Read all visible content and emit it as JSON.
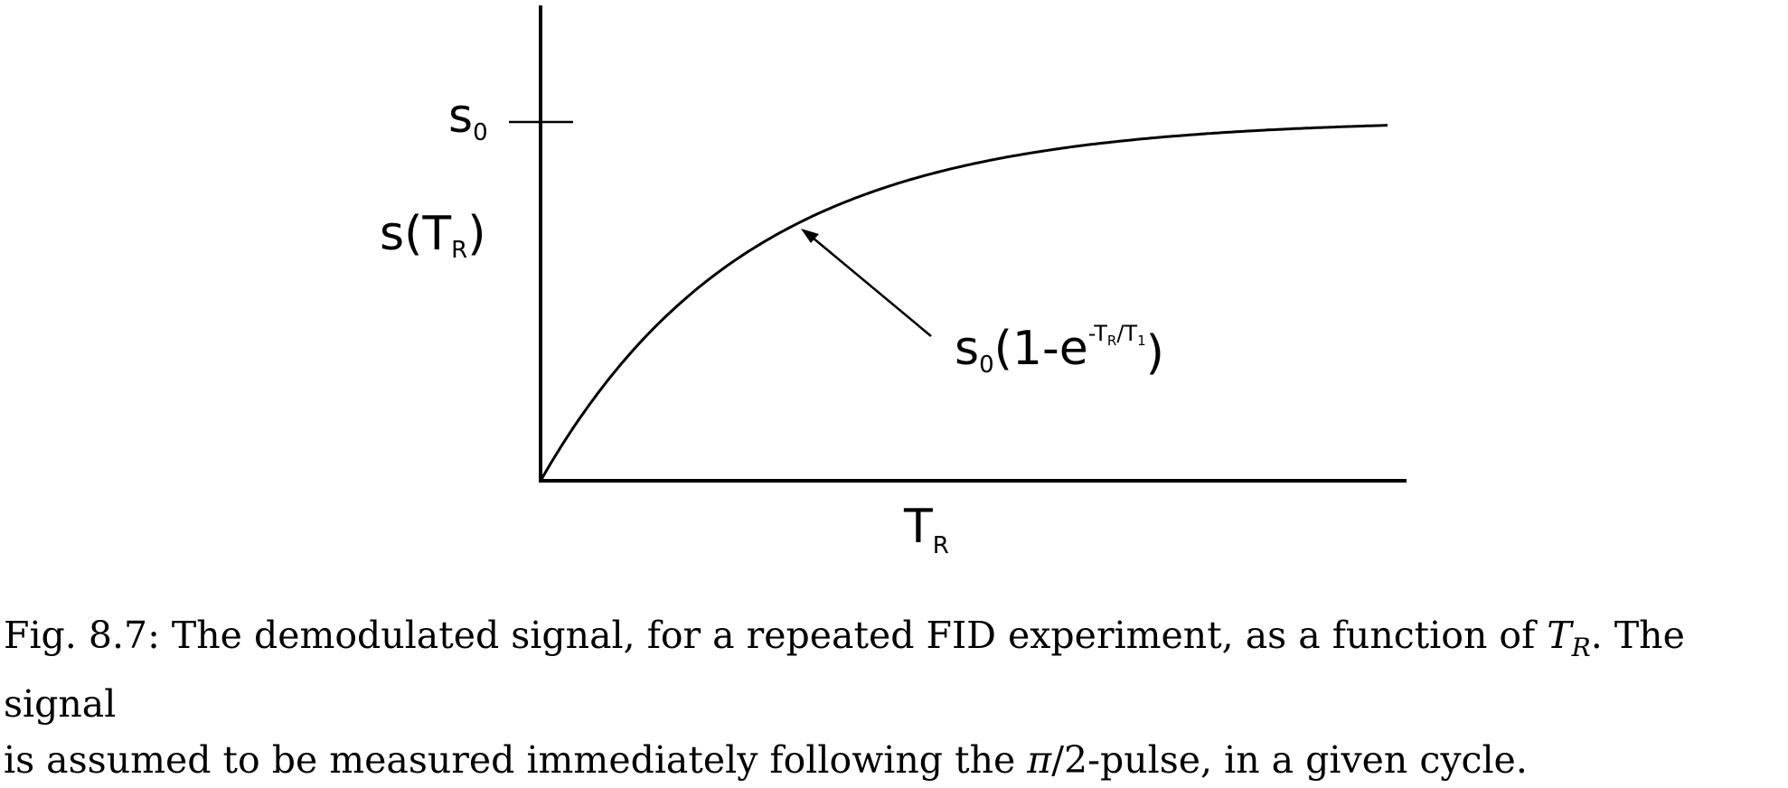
{
  "figure": {
    "y_tick_label": {
      "base": "s",
      "sub": "0"
    },
    "y_axis_label": {
      "base": "s(T",
      "sub": "R",
      "close": ")"
    },
    "x_axis_label": {
      "base": "T",
      "sub": "R"
    },
    "curve_annotation": {
      "s": "s",
      "s_sub": "0",
      "mid": "(1-e",
      "exp_a": "-T",
      "exp_a_sub": "R",
      "exp_b": "/T",
      "exp_b_sub": "1",
      "close": ")"
    },
    "curve_formula": "s0(1-e^(-TR/T1))"
  },
  "caption": {
    "line1_a": "Fig. 8.7: The demodulated signal, for a repeated FID experiment, as a function of ",
    "line1_math": "T",
    "line1_math_sub": "R",
    "line1_b": ". The signal",
    "line2_a": "is assumed to be measured immediately following the ",
    "line2_math": "π",
    "line2_b": "/2-pulse, in a given cycle."
  },
  "style": {
    "ink": "#000000",
    "background": "#ffffff"
  }
}
